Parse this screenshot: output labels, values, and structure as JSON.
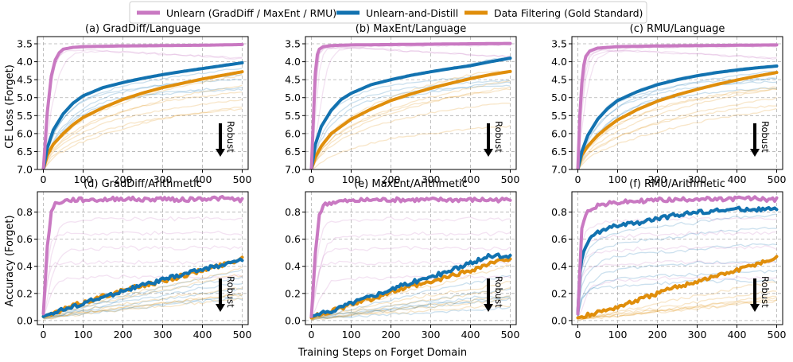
{
  "legend": {
    "items": [
      {
        "label": "Unlearn (GradDiff / MaxEnt / RMU)",
        "color": "#c979c2"
      },
      {
        "label": "Unlearn-and-Distill",
        "color": "#1272b0"
      },
      {
        "label": "Data Filtering (Gold Standard)",
        "color": "#e08e0b"
      }
    ]
  },
  "figure": {
    "xlabel": "Training Steps on Forget Domain",
    "ylabel_top": "CE Loss (Forget)",
    "ylabel_bottom": "Accuracy (Forget)",
    "robust_label": "Robust"
  },
  "chart_data": [
    {
      "type": "line",
      "title": "(a) GradDiff/Language",
      "xlim": [
        -15,
        515
      ],
      "ylim": [
        7.0,
        3.3
      ],
      "y_inverted": true,
      "xticks": [
        0,
        100,
        200,
        300,
        400,
        500
      ],
      "yticks": [
        3.5,
        4.0,
        4.5,
        5.0,
        5.5,
        6.0,
        6.5,
        7.0
      ],
      "ytick_labels": [
        "3.5",
        "4.0",
        "4.5",
        "5.0",
        "5.5",
        "6.0",
        "6.5",
        "7.0"
      ],
      "grid": true,
      "series": [
        {
          "x": [
            0,
            10,
            20,
            30,
            40,
            50,
            75,
            100,
            150,
            200,
            300,
            400,
            500
          ],
          "y": [
            7.0,
            5.4,
            4.4,
            3.95,
            3.75,
            3.65,
            3.6,
            3.58,
            3.57,
            3.56,
            3.55,
            3.54,
            3.52
          ]
        },
        {
          "x": [
            0,
            10,
            25,
            50,
            75,
            100,
            150,
            200,
            250,
            300,
            350,
            400,
            450,
            500
          ],
          "y": [
            7.0,
            6.4,
            5.9,
            5.45,
            5.15,
            4.95,
            4.72,
            4.58,
            4.46,
            4.36,
            4.27,
            4.19,
            4.11,
            4.03
          ]
        },
        {
          "x": [
            0,
            10,
            25,
            50,
            75,
            100,
            150,
            200,
            250,
            300,
            350,
            400,
            450,
            500
          ],
          "y": [
            7.0,
            6.6,
            6.3,
            6.0,
            5.75,
            5.55,
            5.28,
            5.05,
            4.87,
            4.72,
            4.6,
            4.48,
            4.38,
            4.28
          ]
        }
      ]
    },
    {
      "type": "line",
      "title": "(b) MaxEnt/Language",
      "xlim": [
        -15,
        515
      ],
      "ylim": [
        7.0,
        3.3
      ],
      "y_inverted": true,
      "xticks": [
        0,
        100,
        200,
        300,
        400,
        500
      ],
      "yticks": [
        3.5,
        4.0,
        4.5,
        5.0,
        5.5,
        6.0,
        6.5,
        7.0
      ],
      "ytick_labels": [
        "3.5",
        "4.0",
        "4.5",
        "5.0",
        "5.5",
        "6.0",
        "6.5",
        "7.0"
      ],
      "grid": true,
      "series": [
        {
          "x": [
            0,
            5,
            10,
            15,
            20,
            30,
            50,
            100,
            200,
            300,
            400,
            500
          ],
          "y": [
            7.0,
            5.6,
            4.3,
            3.8,
            3.65,
            3.58,
            3.55,
            3.53,
            3.52,
            3.51,
            3.5,
            3.49
          ]
        },
        {
          "x": [
            0,
            10,
            25,
            50,
            75,
            100,
            150,
            200,
            250,
            300,
            350,
            400,
            450,
            500
          ],
          "y": [
            7.0,
            6.3,
            5.8,
            5.35,
            5.05,
            4.88,
            4.64,
            4.5,
            4.38,
            4.28,
            4.19,
            4.11,
            4.0,
            3.9
          ]
        },
        {
          "x": [
            0,
            10,
            25,
            50,
            75,
            100,
            150,
            200,
            250,
            300,
            350,
            400,
            450,
            500
          ],
          "y": [
            7.0,
            6.65,
            6.35,
            6.0,
            5.8,
            5.6,
            5.32,
            5.08,
            4.9,
            4.74,
            4.6,
            4.47,
            4.36,
            4.27
          ]
        }
      ]
    },
    {
      "type": "line",
      "title": "(c) RMU/Language",
      "xlim": [
        -15,
        515
      ],
      "ylim": [
        7.0,
        3.3
      ],
      "y_inverted": true,
      "xticks": [
        0,
        100,
        200,
        300,
        400,
        500
      ],
      "yticks": [
        3.5,
        4.0,
        4.5,
        5.0,
        5.5,
        6.0,
        6.5,
        7.0
      ],
      "ytick_labels": [
        "3.5",
        "4.0",
        "4.5",
        "5.0",
        "5.5",
        "6.0",
        "6.5",
        "7.0"
      ],
      "grid": true,
      "series": [
        {
          "x": [
            0,
            5,
            10,
            15,
            20,
            30,
            50,
            100,
            200,
            300,
            400,
            500
          ],
          "y": [
            7.0,
            5.5,
            4.6,
            4.1,
            3.85,
            3.7,
            3.62,
            3.58,
            3.56,
            3.55,
            3.54,
            3.53
          ]
        },
        {
          "x": [
            0,
            10,
            25,
            50,
            75,
            100,
            150,
            200,
            250,
            300,
            350,
            400,
            450,
            500
          ],
          "y": [
            7.0,
            6.5,
            6.05,
            5.6,
            5.3,
            5.08,
            4.83,
            4.64,
            4.5,
            4.39,
            4.3,
            4.23,
            4.17,
            4.12
          ]
        },
        {
          "x": [
            0,
            10,
            25,
            50,
            75,
            100,
            150,
            200,
            250,
            300,
            350,
            400,
            450,
            500
          ],
          "y": [
            7.0,
            6.6,
            6.35,
            6.05,
            5.82,
            5.62,
            5.33,
            5.1,
            4.92,
            4.77,
            4.63,
            4.51,
            4.4,
            4.3
          ]
        }
      ]
    },
    {
      "type": "line",
      "title": "(d) GradDiff/Arithmetic",
      "xlim": [
        -15,
        515
      ],
      "ylim": [
        -0.03,
        0.95
      ],
      "y_inverted": false,
      "xticks": [
        0,
        100,
        200,
        300,
        400,
        500
      ],
      "yticks": [
        0.0,
        0.2,
        0.4,
        0.6,
        0.8
      ],
      "ytick_labels": [
        "0.0",
        "0.2",
        "0.4",
        "0.6",
        "0.8"
      ],
      "grid": true,
      "series": [
        {
          "x": [
            0,
            10,
            20,
            30,
            50,
            75,
            100,
            150,
            200,
            250,
            300,
            350,
            400,
            450,
            500
          ],
          "y": [
            0.05,
            0.55,
            0.8,
            0.86,
            0.88,
            0.89,
            0.89,
            0.89,
            0.9,
            0.89,
            0.9,
            0.89,
            0.9,
            0.9,
            0.89
          ]
        },
        {
          "x": [
            0,
            25,
            50,
            75,
            100,
            150,
            200,
            250,
            300,
            350,
            400,
            450,
            500
          ],
          "y": [
            0.03,
            0.06,
            0.08,
            0.1,
            0.13,
            0.17,
            0.22,
            0.26,
            0.3,
            0.34,
            0.38,
            0.41,
            0.45
          ]
        },
        {
          "x": [
            0,
            25,
            50,
            75,
            100,
            150,
            200,
            250,
            300,
            350,
            400,
            450,
            500
          ],
          "y": [
            0.03,
            0.05,
            0.08,
            0.11,
            0.13,
            0.18,
            0.22,
            0.26,
            0.29,
            0.33,
            0.37,
            0.41,
            0.46
          ]
        }
      ]
    },
    {
      "type": "line",
      "title": "(e) MaxEnt/Arithmetic",
      "xlim": [
        -15,
        515
      ],
      "ylim": [
        -0.03,
        0.95
      ],
      "y_inverted": false,
      "xticks": [
        0,
        100,
        200,
        300,
        400,
        500
      ],
      "yticks": [
        0.0,
        0.2,
        0.4,
        0.6,
        0.8
      ],
      "ytick_labels": [
        "0.0",
        "0.2",
        "0.4",
        "0.6",
        "0.8"
      ],
      "grid": true,
      "series": [
        {
          "x": [
            0,
            10,
            20,
            30,
            50,
            75,
            100,
            150,
            200,
            250,
            300,
            350,
            400,
            450,
            500
          ],
          "y": [
            0.03,
            0.5,
            0.78,
            0.85,
            0.87,
            0.88,
            0.88,
            0.89,
            0.89,
            0.89,
            0.89,
            0.89,
            0.89,
            0.89,
            0.89
          ]
        },
        {
          "x": [
            0,
            25,
            50,
            75,
            100,
            150,
            200,
            250,
            300,
            350,
            400,
            450,
            500
          ],
          "y": [
            0.03,
            0.05,
            0.07,
            0.1,
            0.13,
            0.18,
            0.23,
            0.28,
            0.32,
            0.37,
            0.42,
            0.48,
            0.47
          ]
        },
        {
          "x": [
            0,
            25,
            50,
            75,
            100,
            150,
            200,
            250,
            300,
            350,
            400,
            450,
            500
          ],
          "y": [
            0.02,
            0.05,
            0.07,
            0.09,
            0.12,
            0.16,
            0.21,
            0.25,
            0.28,
            0.33,
            0.37,
            0.42,
            0.46
          ]
        }
      ]
    },
    {
      "type": "line",
      "title": "(f) RMU/Arithmetic",
      "xlim": [
        -15,
        515
      ],
      "ylim": [
        -0.03,
        0.95
      ],
      "y_inverted": false,
      "xticks": [
        0,
        100,
        200,
        300,
        400,
        500
      ],
      "yticks": [
        0.0,
        0.2,
        0.4,
        0.6,
        0.8
      ],
      "ytick_labels": [
        "0.0",
        "0.2",
        "0.4",
        "0.6",
        "0.8"
      ],
      "grid": true,
      "series": [
        {
          "x": [
            0,
            10,
            20,
            30,
            50,
            75,
            100,
            150,
            200,
            250,
            300,
            350,
            400,
            450,
            500
          ],
          "y": [
            0.05,
            0.68,
            0.78,
            0.82,
            0.85,
            0.86,
            0.87,
            0.88,
            0.89,
            0.89,
            0.9,
            0.89,
            0.9,
            0.9,
            0.89
          ]
        },
        {
          "x": [
            0,
            5,
            10,
            20,
            30,
            50,
            75,
            100,
            150,
            200,
            250,
            300,
            350,
            400,
            450,
            500
          ],
          "y": [
            0.05,
            0.35,
            0.45,
            0.55,
            0.6,
            0.65,
            0.68,
            0.7,
            0.72,
            0.75,
            0.78,
            0.8,
            0.81,
            0.82,
            0.82,
            0.82
          ]
        },
        {
          "x": [
            0,
            25,
            50,
            75,
            100,
            150,
            200,
            250,
            300,
            350,
            400,
            450,
            500
          ],
          "y": [
            0.02,
            0.04,
            0.06,
            0.08,
            0.1,
            0.15,
            0.2,
            0.25,
            0.29,
            0.33,
            0.37,
            0.42,
            0.46
          ]
        }
      ]
    }
  ]
}
